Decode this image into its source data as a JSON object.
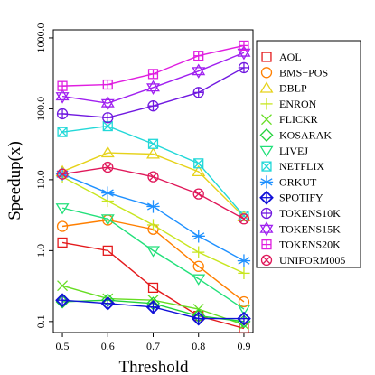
{
  "chart_data": {
    "type": "line",
    "xlabel": "Threshold",
    "ylabel": "Speedup(x)",
    "yscale": "log",
    "x": [
      0.5,
      0.6,
      0.7,
      0.8,
      0.9
    ],
    "x_tick_labels": [
      "0.5",
      "0.6",
      "0.7",
      "0.8",
      "0.9"
    ],
    "xlim": [
      0.48,
      0.92
    ],
    "ylim": [
      0.07,
      1300
    ],
    "y_ticks": [
      0.1,
      1,
      10,
      100,
      1000
    ],
    "y_tick_labels": [
      "0.1",
      "1.0",
      "10.0",
      "100.0",
      "1000.0"
    ],
    "grid": false,
    "legend_position": "right",
    "series": [
      {
        "name": "AOL",
        "color": "#e41a1c",
        "marker": "square",
        "values": [
          1.3,
          1.0,
          0.3,
          0.12,
          0.08
        ]
      },
      {
        "name": "BMS−POS",
        "color": "#ff7f00",
        "marker": "circle",
        "values": [
          2.2,
          2.7,
          2.0,
          0.6,
          0.19
        ]
      },
      {
        "name": "DBLP",
        "color": "#e6d21a",
        "marker": "triangle",
        "values": [
          13,
          24,
          23,
          13,
          3.0
        ]
      },
      {
        "name": "ENRON",
        "color": "#c8e620",
        "marker": "plus",
        "values": [
          11,
          5.0,
          2.3,
          0.95,
          0.48
        ]
      },
      {
        "name": "FLICKR",
        "color": "#66dd22",
        "marker": "cross",
        "values": [
          0.32,
          0.21,
          0.2,
          0.15,
          0.09
        ]
      },
      {
        "name": "KOSARAK",
        "color": "#22d23a",
        "marker": "diamond",
        "values": [
          0.19,
          0.2,
          0.18,
          0.12,
          0.1
        ]
      },
      {
        "name": "LIVEJ",
        "color": "#22e07a",
        "marker": "triangle-down",
        "values": [
          4.0,
          2.8,
          1.0,
          0.4,
          0.15
        ]
      },
      {
        "name": "NETFLIX",
        "color": "#22d8d8",
        "marker": "boxcross",
        "values": [
          47,
          57,
          32,
          17,
          3.1
        ]
      },
      {
        "name": "ORKUT",
        "color": "#1e90ff",
        "marker": "asterisk",
        "values": [
          12,
          6.5,
          4.2,
          1.6,
          0.72
        ]
      },
      {
        "name": "SPOTIFY",
        "color": "#1010d8",
        "marker": "diamondplus",
        "values": [
          0.2,
          0.18,
          0.16,
          0.11,
          0.11
        ]
      },
      {
        "name": "TOKENS10K",
        "color": "#7018e0",
        "marker": "circleplus",
        "values": [
          85,
          75,
          110,
          170,
          380
        ]
      },
      {
        "name": "TOKENS15K",
        "color": "#a020f0",
        "marker": "star",
        "values": [
          150,
          120,
          200,
          340,
          620
        ]
      },
      {
        "name": "TOKENS20K",
        "color": "#e01ee0",
        "marker": "squareplus",
        "values": [
          210,
          220,
          310,
          560,
          780
        ]
      },
      {
        "name": "UNIFORM005",
        "color": "#e0185a",
        "marker": "circlecross",
        "values": [
          12,
          15,
          11,
          6.3,
          2.8
        ]
      }
    ]
  }
}
